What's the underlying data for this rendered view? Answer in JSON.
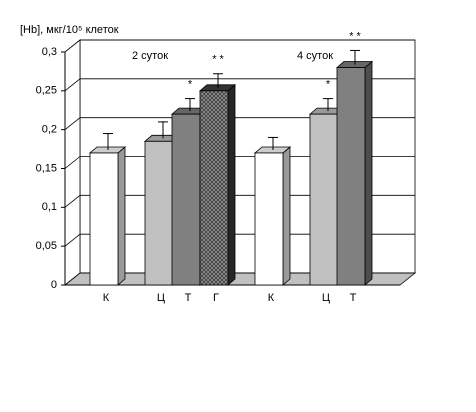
{
  "chart_data": {
    "type": "bar3d",
    "title": "[Hb], мкг/10⁵ клеток",
    "categories": [
      "К",
      "Ц",
      "Т",
      "Г",
      "К",
      "Ц",
      "Т"
    ],
    "values": [
      0.17,
      0.185,
      0.22,
      0.25,
      0.17,
      0.22,
      0.28
    ],
    "errors": [
      0.025,
      0.025,
      0.02,
      0.022,
      0.02,
      0.02,
      0.022
    ],
    "colors": [
      "#ffffff",
      "#c0c0c0",
      "#808080",
      "#404040",
      "#ffffff",
      "#c0c0c0",
      "#808080"
    ],
    "hatched": [
      false,
      false,
      false,
      true,
      false,
      false,
      false
    ],
    "significance": [
      null,
      null,
      "*",
      "* *",
      null,
      "*",
      "* *"
    ],
    "groups": [
      {
        "label": "2 суток",
        "first": 0
      },
      {
        "label": "4 суток",
        "first": 4
      }
    ],
    "ylim": [
      0,
      0.3
    ],
    "yticks": [
      0,
      {
        "value": 0.05,
        "label": "0,05"
      },
      {
        "value": 0.1,
        "label": "0,1"
      },
      {
        "value": 0.15,
        "label": "0,15"
      },
      {
        "value": 0.2,
        "label": "0,2"
      },
      {
        "value": 0.25,
        "label": "0,25"
      },
      {
        "value": 0.3,
        "label": "0,3"
      }
    ],
    "grid": true
  }
}
